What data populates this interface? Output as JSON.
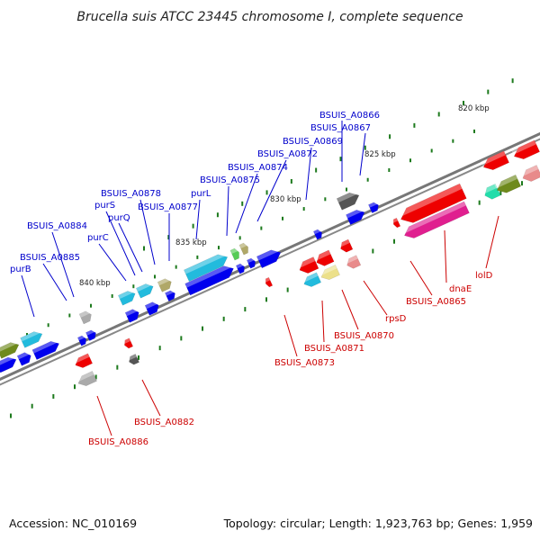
{
  "title": "Brucella suis ATCC 23445 chromosome I, complete sequence",
  "footer": {
    "accession": "Accession: NC_010169",
    "summary": "Topology: circular; Length: 1,923,763 bp; Genes: 1,959"
  },
  "colors": {
    "backbone": "#777777",
    "blue_label": "#0000cc",
    "red_label": "#cc0000",
    "tick": "#1d7a1d",
    "blue_gene": "#0000ee",
    "red_gene": "#ee0000",
    "cyan_gene": "#22bbdd",
    "olive_gene": "#6f8a1c",
    "magenta_gene": "#e01f8f",
    "pink_gene": "#e88a8a",
    "khaki_gene": "#b0a868",
    "grey_gene": "#aaaaaa",
    "dark_gene": "#555555",
    "yellow_gene": "#ece08a",
    "green_gene": "#55cc55",
    "seagreen_gene": "#22ddaa"
  },
  "kbp_labels": [
    "820 kbp",
    "825 kbp",
    "830 kbp",
    "835 kbp",
    "840 kbp"
  ],
  "blue_labels": [
    "BSUIS_A0866",
    "BSUIS_A0867",
    "BSUIS_A0869",
    "BSUIS_A0872",
    "BSUIS_A0874",
    "BSUIS_A0875",
    "purL",
    "BSUIS_A0878",
    "BSUIS_A0877",
    "purS",
    "purQ",
    "BSUIS_A0884",
    "purC",
    "BSUIS_A0885",
    "purB"
  ],
  "red_labels": [
    "lolD",
    "dnaE",
    "BSUIS_A0865",
    "rpsD",
    "BSUIS_A0870",
    "BSUIS_A0871",
    "BSUIS_A0873",
    "BSUIS_A0882",
    "BSUIS_A0886"
  ]
}
